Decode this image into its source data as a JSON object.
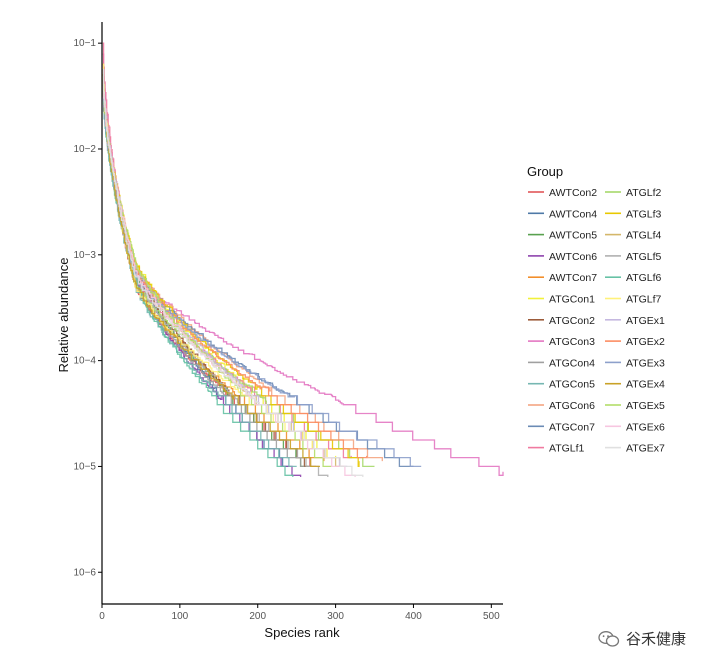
{
  "chart_data": {
    "type": "line",
    "title": "",
    "xlabel": "Species rank",
    "ylabel": "Relative abundance",
    "xlim": [
      0,
      515
    ],
    "ylim_log10": [
      -6.3,
      -0.8
    ],
    "y_scale": "log",
    "x_ticks": [
      0,
      100,
      200,
      300,
      400,
      500
    ],
    "y_ticks": [
      {
        "exp": -1,
        "label": "10−1"
      },
      {
        "exp": -2,
        "label": "10−2"
      },
      {
        "exp": -3,
        "label": "10−3"
      },
      {
        "exp": -4,
        "label": "10−4"
      },
      {
        "exp": -5,
        "label": "10−5"
      },
      {
        "exp": -6,
        "label": "10−6"
      }
    ],
    "legend_title": "Group",
    "legend_position": "right",
    "series": [
      {
        "name": "AWTCon2",
        "color": "#e15759",
        "n": 275,
        "start": -1.25,
        "tail": -5.0
      },
      {
        "name": "AWTCon4",
        "color": "#4e79a7",
        "n": 240,
        "start": -1.45,
        "tail": -5.0
      },
      {
        "name": "AWTCon5",
        "color": "#59a14f",
        "n": 265,
        "start": -1.3,
        "tail": -5.0
      },
      {
        "name": "AWTCon6",
        "color": "#8e44ad",
        "n": 255,
        "start": -1.35,
        "tail": -5.1
      },
      {
        "name": "AWTCon7",
        "color": "#f28e2b",
        "n": 285,
        "start": -1.2,
        "tail": -4.95
      },
      {
        "name": "ATGCon1",
        "color": "#f1f13a",
        "n": 300,
        "start": -1.25,
        "tail": -4.9
      },
      {
        "name": "ATGCon2",
        "color": "#9c5b3a",
        "n": 270,
        "start": -1.3,
        "tail": -5.0
      },
      {
        "name": "ATGCon3",
        "color": "#e377c2",
        "n": 515,
        "start": -1.1,
        "tail": -5.05
      },
      {
        "name": "ATGCon4",
        "color": "#a0a0a0",
        "n": 260,
        "start": -1.4,
        "tail": -5.0
      },
      {
        "name": "ATGCon5",
        "color": "#76b7b2",
        "n": 250,
        "start": -1.35,
        "tail": -5.0
      },
      {
        "name": "ATGCon6",
        "color": "#f4a582",
        "n": 360,
        "start": -1.2,
        "tail": -4.95
      },
      {
        "name": "ATGCon7",
        "color": "#6b8bb5",
        "n": 400,
        "start": -1.3,
        "tail": -5.0
      },
      {
        "name": "ATGLf1",
        "color": "#f07aa0",
        "n": 320,
        "start": -1.0,
        "tail": -4.9
      },
      {
        "name": "ATGLf2",
        "color": "#a6d96a",
        "n": 350,
        "start": -1.25,
        "tail": -5.0
      },
      {
        "name": "ATGLf3",
        "color": "#e8c800",
        "n": 330,
        "start": -1.3,
        "tail": -4.95
      },
      {
        "name": "ATGLf4",
        "color": "#d4b76a",
        "n": 310,
        "start": -1.3,
        "tail": -5.0
      },
      {
        "name": "ATGLf5",
        "color": "#b0b0b0",
        "n": 290,
        "start": -1.35,
        "tail": -5.1
      },
      {
        "name": "ATGLf6",
        "color": "#66c2a5",
        "n": 245,
        "start": -1.4,
        "tail": -5.1
      },
      {
        "name": "ATGLf7",
        "color": "#fff17a",
        "n": 305,
        "start": -1.2,
        "tail": -4.95
      },
      {
        "name": "ATGEx1",
        "color": "#c5b8e0",
        "n": 315,
        "start": -1.25,
        "tail": -5.0
      },
      {
        "name": "ATGEx2",
        "color": "#fc8d62",
        "n": 340,
        "start": -1.3,
        "tail": -4.9
      },
      {
        "name": "ATGEx3",
        "color": "#8da0cb",
        "n": 410,
        "start": -1.35,
        "tail": -5.0
      },
      {
        "name": "ATGEx4",
        "color": "#c9a227",
        "n": 280,
        "start": -1.3,
        "tail": -5.0
      },
      {
        "name": "ATGEx5",
        "color": "#b3de69",
        "n": 295,
        "start": -1.35,
        "tail": -5.0
      },
      {
        "name": "ATGEx6",
        "color": "#f7c6e0",
        "n": 325,
        "start": -1.3,
        "tail": -5.1
      },
      {
        "name": "ATGEx7",
        "color": "#e0e0e0",
        "n": 335,
        "start": -1.25,
        "tail": -5.1
      }
    ]
  },
  "watermark": {
    "text": "谷禾健康"
  }
}
